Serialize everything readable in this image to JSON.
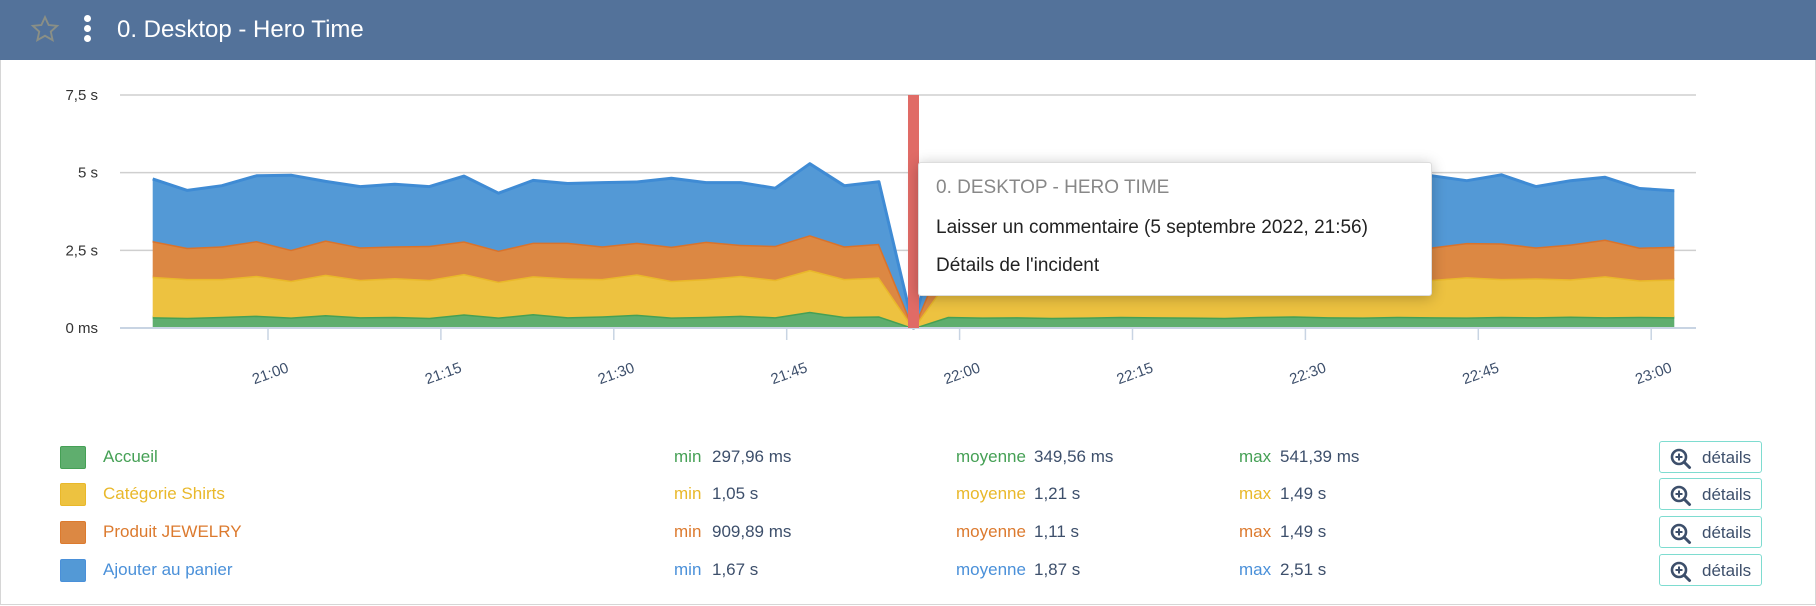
{
  "header": {
    "title": "0. Desktop - Hero Time",
    "star_icon": "star-outline-icon",
    "menu_icon": "vertical-dots-icon",
    "color": "#53729a"
  },
  "chart_data": {
    "type": "area",
    "stacked": true,
    "y_ticks": [
      "0 ms",
      "2,5 s",
      "5 s",
      "7,5 s"
    ],
    "y_tick_values": [
      0,
      2.5,
      5,
      7.5
    ],
    "ylim": [
      0,
      7.5
    ],
    "x_ticks": [
      "21:00",
      "21:15",
      "21:30",
      "21:45",
      "22:00",
      "22:15",
      "22:30",
      "22:45",
      "23:00"
    ],
    "grid": true,
    "x": [
      "20:50",
      "20:53",
      "20:56",
      "20:59",
      "21:02",
      "21:05",
      "21:08",
      "21:11",
      "21:14",
      "21:17",
      "21:20",
      "21:23",
      "21:26",
      "21:29",
      "21:32",
      "21:35",
      "21:38",
      "21:41",
      "21:44",
      "21:47",
      "21:50",
      "21:53",
      "21:56",
      "21:59",
      "22:02",
      "22:05",
      "22:08",
      "22:11",
      "22:14",
      "22:17",
      "22:20",
      "22:23",
      "22:26",
      "22:29",
      "22:32",
      "22:35",
      "22:38",
      "22:41",
      "22:44",
      "22:47",
      "22:50",
      "22:53",
      "22:56",
      "22:59",
      "23:02"
    ],
    "series": [
      {
        "name": "Accueil",
        "color": "#5fae6e",
        "line": "#45a055",
        "values": [
          0.35,
          0.33,
          0.36,
          0.4,
          0.34,
          0.42,
          0.35,
          0.36,
          0.33,
          0.44,
          0.34,
          0.45,
          0.35,
          0.38,
          0.43,
          0.34,
          0.36,
          0.4,
          0.35,
          0.52,
          0.36,
          0.38,
          0.0,
          0.36,
          0.34,
          0.35,
          0.33,
          0.34,
          0.36,
          0.35,
          0.34,
          0.33,
          0.36,
          0.38,
          0.35,
          0.34,
          0.36,
          0.35,
          0.34,
          0.36,
          0.35,
          0.37,
          0.35,
          0.36,
          0.35
        ]
      },
      {
        "name": "Catégorie Shirts",
        "color": "#edc240",
        "line": "#e9b82a",
        "values": [
          1.3,
          1.25,
          1.22,
          1.28,
          1.18,
          1.3,
          1.2,
          1.25,
          1.22,
          1.3,
          1.15,
          1.22,
          1.25,
          1.2,
          1.3,
          1.18,
          1.22,
          1.28,
          1.2,
          1.35,
          1.22,
          1.25,
          0.0,
          1.2,
          1.22,
          1.18,
          1.2,
          1.22,
          1.2,
          1.18,
          1.2,
          1.22,
          1.2,
          1.25,
          1.18,
          1.22,
          1.25,
          1.2,
          1.3,
          1.22,
          1.25,
          1.2,
          1.32,
          1.18,
          1.22
        ]
      },
      {
        "name": "Produit JEWELRY",
        "color": "#dc8843",
        "line": "#d9732c",
        "values": [
          1.15,
          1.0,
          1.05,
          1.12,
          1.0,
          1.1,
          1.05,
          1.02,
          1.1,
          1.05,
          1.0,
          1.08,
          1.15,
          1.05,
          1.02,
          1.1,
          1.2,
          1.0,
          1.1,
          1.12,
          1.05,
          1.08,
          0.0,
          1.1,
          1.08,
          1.05,
          1.1,
          1.05,
          1.12,
          1.08,
          1.1,
          1.05,
          1.08,
          1.1,
          1.05,
          1.12,
          1.15,
          1.05,
          1.1,
          1.15,
          1.0,
          1.12,
          1.18,
          1.05,
          1.05
        ]
      },
      {
        "name": "Ajouter au panier",
        "color": "#5399d6",
        "line": "#3f8bd4",
        "values": [
          2.0,
          1.85,
          1.95,
          2.1,
          2.4,
          1.9,
          1.95,
          2.0,
          1.9,
          2.1,
          1.85,
          2.0,
          1.9,
          2.05,
          1.95,
          2.2,
          1.9,
          2.0,
          1.85,
          2.3,
          1.95,
          2.0,
          0.0,
          2.0,
          1.95,
          2.05,
          1.9,
          2.0,
          1.95,
          2.05,
          1.9,
          2.0,
          1.95,
          1.9,
          2.0,
          1.95,
          2.1,
          2.3,
          2.0,
          2.2,
          1.95,
          2.05,
          2.0,
          1.9,
          1.8
        ]
      }
    ],
    "annotation": {
      "time": "21:56",
      "color": "#e06b66"
    }
  },
  "tooltip": {
    "title": "0. DESKTOP - HERO TIME",
    "comment_link": "Laisser un commentaire (5 septembre 2022, 21:56)",
    "incident_link": "Détails de l'incident"
  },
  "legend": {
    "min_label": "min",
    "avg_label": "moyenne",
    "max_label": "max",
    "details_label": "détails",
    "details_icon": "zoom-in-icon",
    "rows": [
      {
        "name": "Accueil",
        "color": "#5fae6e",
        "text_color": "#45a055",
        "min": "297,96 ms",
        "avg": "349,56 ms",
        "max": "541,39 ms"
      },
      {
        "name": "Catégorie Shirts",
        "color": "#edc240",
        "text_color": "#e9b82a",
        "min": "1,05 s",
        "avg": "1,21 s",
        "max": "1,49 s"
      },
      {
        "name": "Produit JEWELRY",
        "color": "#dc8843",
        "text_color": "#dc7a2e",
        "min": "909,89 ms",
        "avg": "1,11 s",
        "max": "1,49 s"
      },
      {
        "name": "Ajouter au panier",
        "color": "#5399d6",
        "text_color": "#4a90d9",
        "min": "1,67 s",
        "avg": "1,87 s",
        "max": "2,51 s"
      }
    ]
  }
}
